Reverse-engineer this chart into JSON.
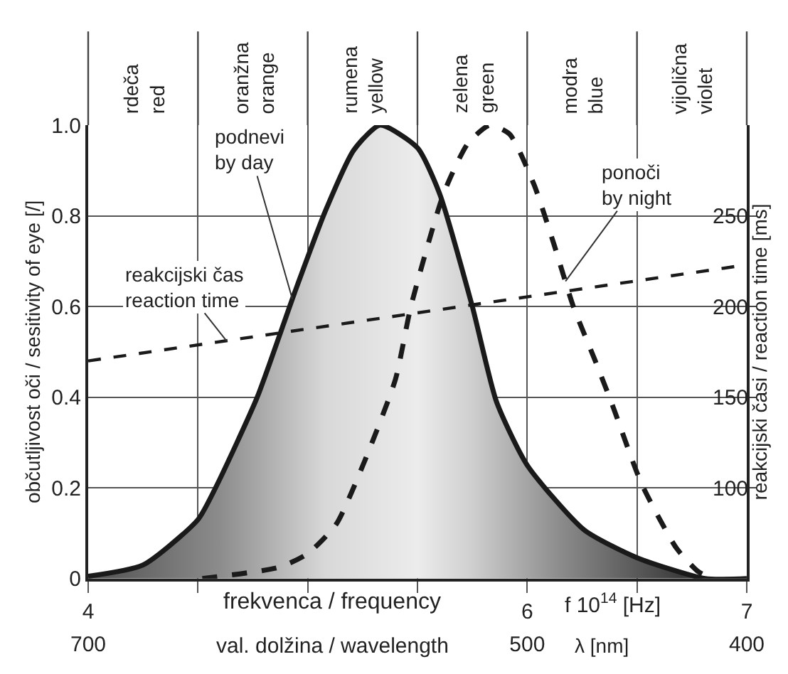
{
  "chart_data": {
    "type": "line",
    "xlabel": "frekvenca / frequency",
    "x2label": "val. dolžina / wavelength",
    "ylabel": "občutljivost oči / sesitivity of eye [/]",
    "y2label": "reakcijski časi / reaction time [ms]",
    "annotations": [
      "f 10$^{14}$ [Hz]",
      "λ [nm]",
      "rdeča\nred",
      "oranžna\norange",
      "rumena\nyellow",
      "zelena\ngreen",
      "modra\nblue",
      "vijolična\nviolet"
    ],
    "xlim": [
      4,
      7
    ],
    "xticks": [
      4,
      {
        "value": 4.5,
        "label": null
      },
      {
        "value": 5,
        "label": null
      },
      {
        "value": 5.5,
        "label": null
      },
      6,
      {
        "value": 6.5,
        "label": null
      },
      7
    ],
    "x2lim": [
      700,
      400
    ],
    "x2ticks": [
      700,
      500,
      400
    ],
    "ylim": [
      0,
      1
    ],
    "yticks": [
      0,
      0.2,
      0.4,
      0.6,
      0.8,
      {
        "value": 1,
        "label": "1.0"
      }
    ],
    "y2lim": [
      50,
      300
    ],
    "y2ticks": [
      100,
      150,
      200,
      250
    ],
    "grid": true,
    "legend": false,
    "marker": "none",
    "series": [
      {
        "name": "podnevi\nby day",
        "type": "area",
        "color": "#1a1a1a",
        "line_style": "solid",
        "x": [
          4,
          4.25,
          4.5,
          4.58,
          4.77,
          4.94,
          5.08,
          5.21,
          5.33,
          5.5,
          5.6,
          5.75,
          5.86,
          6.0,
          6.26,
          6.5,
          6.81,
          7
        ],
        "values": [
          0.005,
          0.03,
          0.13,
          0.2,
          0.4,
          0.63,
          0.81,
          0.945,
          1.0,
          0.95,
          0.85,
          0.6,
          0.39,
          0.25,
          0.107,
          0.046,
          0,
          0
        ]
      },
      {
        "name": "ponoči\nby night",
        "color": "#1a1a1a",
        "line_style": "dashed",
        "x": [
          4.52,
          4.87,
          5.0,
          5.13,
          5.26,
          5.4,
          5.47,
          5.62,
          5.73,
          5.83,
          5.92,
          6.03,
          6.12,
          6.21,
          6.31,
          6.39,
          6.52,
          6.68,
          6.78,
          6.85
        ],
        "values": [
          0,
          0.025,
          0.055,
          0.12,
          0.26,
          0.44,
          0.6,
          0.85,
          0.96,
          1.0,
          0.98,
          0.87,
          0.74,
          0.6,
          0.48,
          0.38,
          0.21,
          0.067,
          0.015,
          0
        ]
      },
      {
        "name": "reakcijski čas\nreaction time",
        "axis": "y2",
        "color": "#1a1a1a",
        "line_style": "dashed",
        "x": [
          4,
          7
        ],
        "values": [
          170,
          223
        ]
      }
    ]
  }
}
